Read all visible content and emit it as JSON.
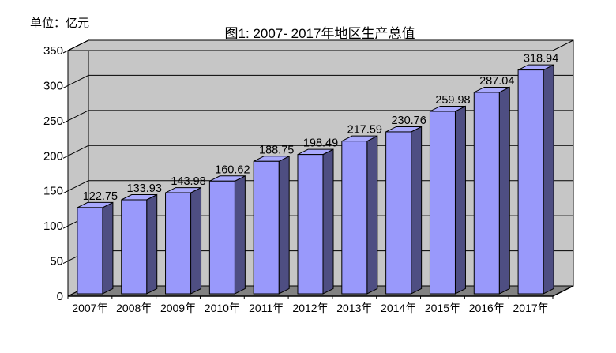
{
  "unit_label": "单位：亿元",
  "title": "图1: 2007- 2017年地区生产总值",
  "chart_data": {
    "type": "bar",
    "style": "3d-column",
    "title": "图1: 2007- 2017年地区生产总值",
    "unit": "单位：亿元",
    "categories": [
      "2007年",
      "2008年",
      "2009年",
      "2010年",
      "2011年",
      "2012年",
      "2013年",
      "2014年",
      "2015年",
      "2016年",
      "2017年"
    ],
    "values": [
      122.75,
      133.93,
      143.98,
      160.62,
      188.75,
      198.49,
      217.59,
      230.76,
      259.98,
      287.04,
      318.94
    ],
    "data_labels": [
      "122.75",
      "133.93",
      "143.98",
      "160.62",
      "188.75",
      "198.49",
      "217.59",
      "230.76",
      "259.98",
      "287.04",
      "318.94"
    ],
    "y_ticks": [
      0,
      50,
      100,
      150,
      200,
      250,
      300,
      350
    ],
    "ylim": [
      0,
      350
    ],
    "grid": true,
    "legend": "none",
    "colors": {
      "bar_front": "#9999fb",
      "bar_side": "#4e4e82",
      "bar_top": "#a9a9fd",
      "wall": "#c6c6c6",
      "floor": "#828282",
      "line": "#000000",
      "text": "#000000"
    }
  }
}
